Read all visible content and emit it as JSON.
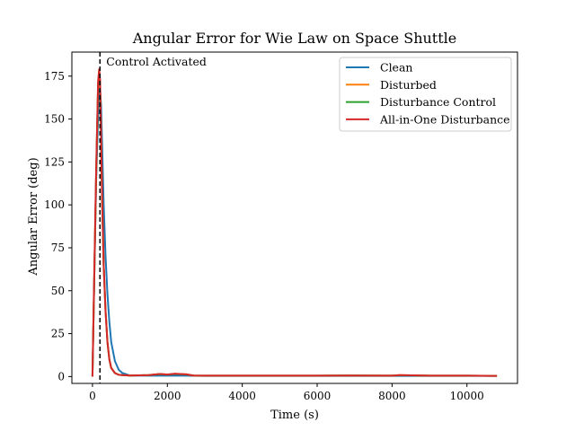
{
  "chart_data": {
    "type": "line",
    "title": "Angular Error for Wie Law on Space Shuttle",
    "xlabel": "Time (s)",
    "ylabel": "Angular Error (deg)",
    "xlim": [
      -550,
      11350
    ],
    "ylim": [
      -4,
      189
    ],
    "xticks": [
      0,
      2000,
      4000,
      6000,
      8000,
      10000
    ],
    "yticks": [
      0,
      25,
      50,
      75,
      100,
      125,
      150,
      175
    ],
    "grid": false,
    "legend_position": "top-right",
    "annotation": {
      "text": "Control Activated",
      "x": 200,
      "style": "dashed vertical line"
    },
    "series": [
      {
        "name": "Clean",
        "color": "#1f77b4",
        "x": [
          0,
          60,
          100,
          140,
          180,
          200,
          230,
          260,
          300,
          350,
          400,
          450,
          500,
          600,
          700,
          800,
          1000,
          1500,
          2000,
          2500,
          3000,
          4000,
          5000,
          6000,
          7000,
          8000,
          9000,
          10000,
          10800
        ],
        "y": [
          0,
          70,
          115,
          145,
          165,
          168,
          158,
          132,
          100,
          70,
          48,
          32,
          20,
          9,
          4,
          2,
          0.6,
          0.5,
          0.5,
          0.5,
          0.4,
          0.4,
          0.4,
          0.4,
          0.4,
          0.4,
          0.4,
          0.4,
          0.4
        ]
      },
      {
        "name": "Disturbed",
        "color": "#ff7f0e",
        "x": [
          0,
          50,
          100,
          150,
          180,
          200,
          230,
          260,
          300,
          350,
          400,
          450,
          500,
          600,
          700,
          800,
          1000,
          1500,
          1800,
          2000,
          2200,
          2500,
          2700,
          3000,
          4000,
          5000,
          6000,
          7000,
          8000,
          8200,
          9000,
          10000,
          10800
        ],
        "y": [
          0,
          60,
          120,
          170,
          178,
          172,
          140,
          100,
          65,
          38,
          20,
          10,
          5,
          2,
          1,
          0.8,
          0.6,
          0.8,
          1.5,
          1.2,
          1.6,
          1.3,
          0.6,
          0.5,
          0.5,
          0.5,
          0.5,
          0.6,
          0.5,
          0.8,
          0.5,
          0.5,
          0.4
        ]
      },
      {
        "name": "Disturbance Control",
        "color": "#2ca02c",
        "x": [
          0,
          50,
          100,
          150,
          180,
          200,
          230,
          260,
          300,
          350,
          400,
          450,
          500,
          600,
          700,
          800,
          1000,
          1500,
          1800,
          2000,
          2200,
          2500,
          2700,
          3000,
          4000,
          5000,
          6000,
          7000,
          8000,
          8200,
          9000,
          10000,
          10800
        ],
        "y": [
          0,
          60,
          120,
          170,
          178,
          172,
          140,
          100,
          65,
          38,
          20,
          10,
          5,
          2,
          1,
          0.8,
          0.6,
          0.8,
          1.4,
          1.1,
          1.5,
          1.2,
          0.6,
          0.5,
          0.5,
          0.5,
          0.5,
          0.6,
          0.5,
          0.7,
          0.5,
          0.5,
          0.4
        ]
      },
      {
        "name": "All-in-One Disturbance",
        "color": "#d62728",
        "x": [
          0,
          50,
          100,
          150,
          180,
          200,
          230,
          260,
          300,
          350,
          400,
          450,
          500,
          600,
          700,
          800,
          1000,
          1500,
          1800,
          2000,
          2200,
          2500,
          2700,
          3000,
          4000,
          5000,
          6000,
          7000,
          8000,
          8200,
          9000,
          10000,
          10800
        ],
        "y": [
          0,
          62,
          122,
          172,
          179,
          173,
          140,
          100,
          65,
          38,
          20,
          10,
          5,
          2,
          1,
          0.8,
          0.6,
          0.8,
          1.5,
          1.2,
          1.6,
          1.3,
          0.6,
          0.5,
          0.5,
          0.5,
          0.5,
          0.6,
          0.5,
          0.8,
          0.5,
          0.5,
          0.4
        ]
      }
    ]
  }
}
